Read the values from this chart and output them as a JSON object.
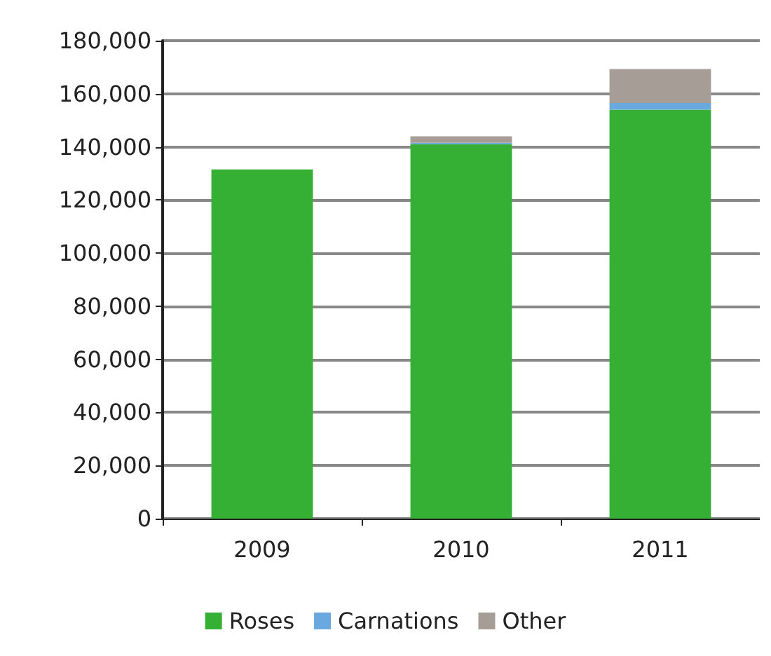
{
  "chart_data": {
    "type": "bar",
    "stacked": true,
    "categories": [
      "2009",
      "2010",
      "2011"
    ],
    "series": [
      {
        "name": "Roses",
        "color": "#35b035",
        "values": [
          131500,
          141000,
          154000
        ]
      },
      {
        "name": "Carnations",
        "color": "#6aa9e0",
        "values": [
          0,
          500,
          2500
        ]
      },
      {
        "name": "Other",
        "color": "#a59d96",
        "values": [
          0,
          2500,
          12800
        ]
      }
    ],
    "ylim": [
      0,
      180000
    ],
    "yticks": [
      0,
      {
        "value": 20000,
        "label": "20,000"
      },
      {
        "value": 40000,
        "label": "40,000"
      },
      {
        "value": 60000,
        "label": "60,000"
      },
      {
        "value": 80000,
        "label": "80,000"
      },
      {
        "value": 100000,
        "label": "100,000"
      },
      {
        "value": 120000,
        "label": "120,000"
      },
      {
        "value": 140000,
        "label": "140,000"
      },
      {
        "value": 160000,
        "label": "160,000"
      },
      {
        "value": 180000,
        "label": "180,000"
      }
    ],
    "grid": "y",
    "legend": "bottom"
  }
}
